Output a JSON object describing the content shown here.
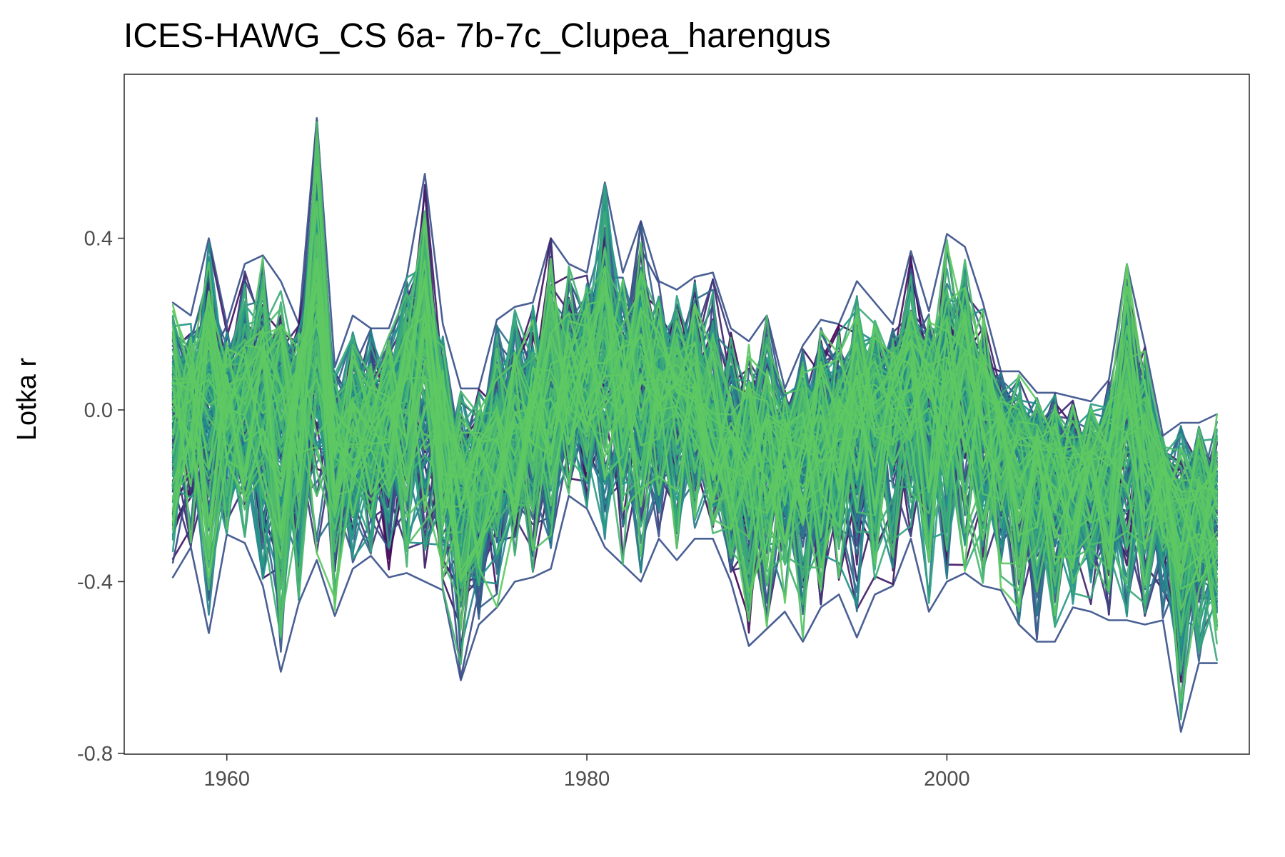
{
  "chart_data": {
    "type": "line",
    "title": "ICES-HAWG_CS 6a- 7b-7c_Clupea_harengus",
    "xlabel": "",
    "ylabel": "Lotka r",
    "xlim": [
      1954.3,
      2016.8
    ],
    "ylim": [
      -0.802,
      0.782
    ],
    "x_ticks": [
      1960,
      1980,
      2000
    ],
    "x_tick_labels": [
      "1960",
      "1980",
      "2000"
    ],
    "y_ticks": [
      -0.8,
      -0.4,
      0.0,
      0.4
    ],
    "y_tick_labels": [
      "-0.8",
      "-0.4",
      "0.0",
      "0.4"
    ],
    "grid": false,
    "legend": "none",
    "ensemble_size": 200,
    "color_scale": [
      "#440154",
      "#3b528b",
      "#21918c",
      "#5ec962"
    ],
    "years": [
      1957,
      1958,
      1959,
      1960,
      1961,
      1962,
      1963,
      1964,
      1965,
      1966,
      1967,
      1968,
      1969,
      1970,
      1971,
      1972,
      1973,
      1974,
      1975,
      1976,
      1977,
      1978,
      1979,
      1980,
      1981,
      1982,
      1983,
      1984,
      1985,
      1986,
      1987,
      1988,
      1989,
      1990,
      1991,
      1992,
      1993,
      1994,
      1995,
      1996,
      1997,
      1998,
      1999,
      2000,
      2001,
      2002,
      2003,
      2004,
      2005,
      2006,
      2007,
      2008,
      2009,
      2010,
      2011,
      2012,
      2013,
      2014,
      2015
    ],
    "central_trend": [
      0.02,
      0.03,
      0.07,
      0.02,
      0.05,
      0.05,
      0.02,
      0.04,
      0.22,
      -0.1,
      -0.02,
      -0.04,
      0.0,
      0.06,
      0.18,
      -0.06,
      -0.18,
      -0.14,
      -0.08,
      -0.06,
      0.0,
      0.03,
      0.06,
      0.08,
      0.16,
      0.06,
      0.1,
      0.06,
      0.04,
      0.02,
      -0.02,
      -0.12,
      -0.12,
      -0.09,
      -0.07,
      -0.07,
      -0.07,
      -0.05,
      -0.02,
      0.0,
      0.03,
      0.06,
      0.04,
      0.06,
      0.08,
      0.02,
      -0.04,
      -0.08,
      -0.1,
      -0.13,
      -0.15,
      -0.16,
      -0.12,
      0.02,
      -0.06,
      -0.12,
      -0.26,
      -0.22,
      -0.22
    ],
    "envelope_max": [
      0.25,
      0.22,
      0.4,
      0.2,
      0.34,
      0.36,
      0.3,
      0.2,
      0.68,
      0.1,
      0.22,
      0.19,
      0.19,
      0.31,
      0.55,
      0.2,
      0.05,
      0.05,
      0.21,
      0.24,
      0.25,
      0.4,
      0.34,
      0.32,
      0.53,
      0.32,
      0.44,
      0.3,
      0.28,
      0.31,
      0.32,
      0.19,
      0.16,
      0.22,
      0.05,
      0.15,
      0.21,
      0.2,
      0.3,
      0.25,
      0.2,
      0.37,
      0.23,
      0.41,
      0.38,
      0.25,
      0.09,
      0.09,
      0.04,
      0.04,
      0.03,
      0.02,
      0.07,
      0.34,
      0.15,
      -0.06,
      -0.03,
      -0.03,
      -0.01
    ],
    "envelope_min": [
      -0.39,
      -0.32,
      -0.52,
      -0.29,
      -0.31,
      -0.41,
      -0.61,
      -0.45,
      -0.35,
      -0.48,
      -0.37,
      -0.34,
      -0.39,
      -0.38,
      -0.4,
      -0.42,
      -0.63,
      -0.5,
      -0.46,
      -0.4,
      -0.39,
      -0.37,
      -0.2,
      -0.23,
      -0.32,
      -0.36,
      -0.4,
      -0.3,
      -0.35,
      -0.3,
      -0.3,
      -0.4,
      -0.55,
      -0.51,
      -0.47,
      -0.54,
      -0.46,
      -0.43,
      -0.53,
      -0.43,
      -0.41,
      -0.3,
      -0.47,
      -0.4,
      -0.38,
      -0.41,
      -0.42,
      -0.5,
      -0.54,
      -0.54,
      -0.46,
      -0.47,
      -0.49,
      -0.49,
      -0.5,
      -0.49,
      -0.75,
      -0.59,
      -0.59
    ]
  }
}
